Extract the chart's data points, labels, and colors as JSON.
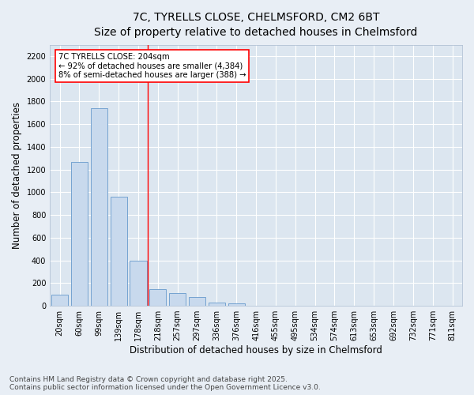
{
  "title_line1": "7C, TYRELLS CLOSE, CHELMSFORD, CM2 6BT",
  "title_line2": "Size of property relative to detached houses in Chelmsford",
  "xlabel": "Distribution of detached houses by size in Chelmsford",
  "ylabel": "Number of detached properties",
  "footnote": "Contains HM Land Registry data © Crown copyright and database right 2025.\nContains public sector information licensed under the Open Government Licence v3.0.",
  "bar_labels": [
    "20sqm",
    "60sqm",
    "99sqm",
    "139sqm",
    "178sqm",
    "218sqm",
    "257sqm",
    "297sqm",
    "336sqm",
    "376sqm",
    "416sqm",
    "455sqm",
    "495sqm",
    "534sqm",
    "574sqm",
    "613sqm",
    "653sqm",
    "692sqm",
    "732sqm",
    "771sqm",
    "811sqm"
  ],
  "bar_values": [
    100,
    1270,
    1740,
    960,
    400,
    150,
    110,
    80,
    30,
    20,
    0,
    0,
    0,
    0,
    0,
    0,
    0,
    0,
    0,
    0,
    0
  ],
  "bar_color": "#c8d9ed",
  "bar_edge_color": "#6699cc",
  "vline_x": 4.5,
  "vline_color": "red",
  "annotation_text": "7C TYRELLS CLOSE: 204sqm\n← 92% of detached houses are smaller (4,384)\n8% of semi-detached houses are larger (388) →",
  "ylim": [
    0,
    2300
  ],
  "yticks": [
    0,
    200,
    400,
    600,
    800,
    1000,
    1200,
    1400,
    1600,
    1800,
    2000,
    2200
  ],
  "background_color": "#e8eef5",
  "plot_bg_color": "#dce6f0",
  "grid_color": "#ffffff",
  "title_fontsize": 10,
  "subtitle_fontsize": 9,
  "axis_label_fontsize": 8.5,
  "tick_fontsize": 7,
  "footnote_fontsize": 6.5
}
